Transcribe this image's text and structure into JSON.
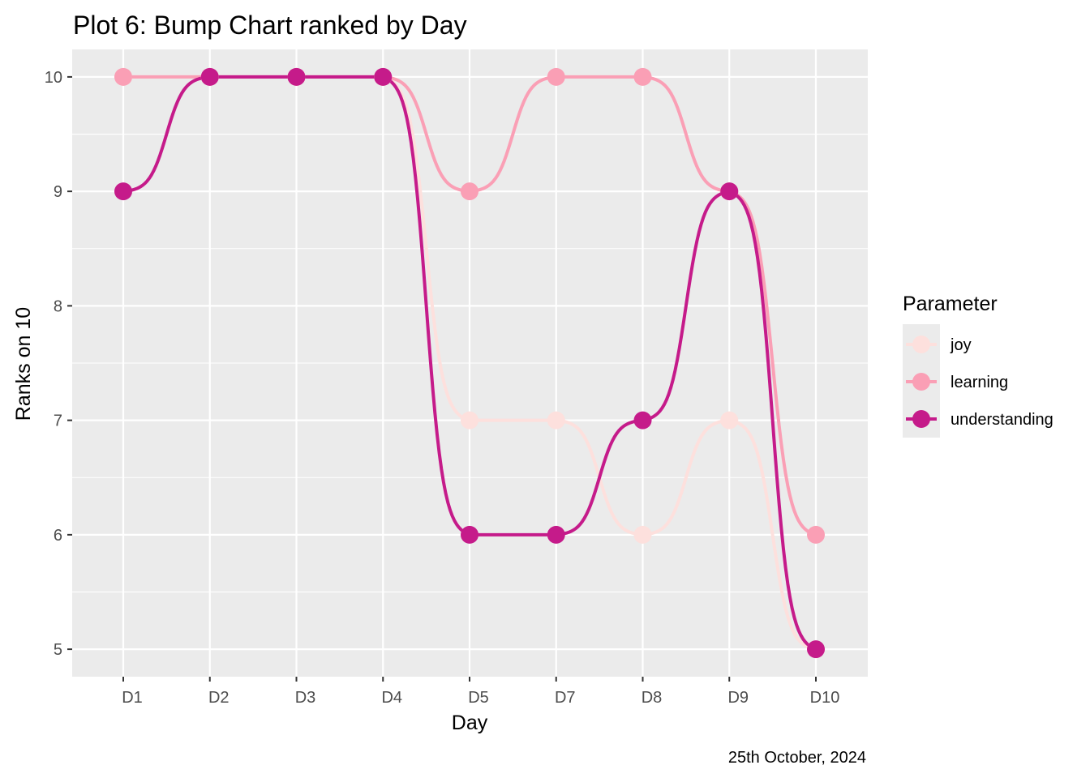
{
  "chart_data": {
    "type": "line",
    "title": "Plot 6: Bump Chart ranked by Day",
    "xlabel": "Day",
    "ylabel": "Ranks on 10",
    "caption": "25th October, 2024",
    "categories": [
      "D1",
      "D2",
      "D3",
      "D4",
      "D5",
      "D7",
      "D8",
      "D9",
      "D10"
    ],
    "yticks": [
      "5",
      "6",
      "7",
      "8",
      "9",
      "10"
    ],
    "ylim": [
      4.76,
      10.24
    ],
    "grid": true,
    "legend": {
      "title": "Parameter",
      "placement": "right"
    },
    "series": [
      {
        "name": "joy",
        "color": "#FDE0DD",
        "values": [
          10,
          10,
          10,
          10,
          7,
          7,
          6,
          7,
          5
        ]
      },
      {
        "name": "learning",
        "color": "#FA9FB5",
        "values": [
          10,
          10,
          10,
          10,
          9,
          10,
          10,
          9,
          6
        ]
      },
      {
        "name": "understanding",
        "color": "#C51B8A",
        "values": [
          9,
          10,
          10,
          10,
          6,
          6,
          7,
          9,
          5
        ]
      }
    ],
    "colors": {
      "panel": "#EBEBEB",
      "grid": "#FFFFFF",
      "tick_text": "#4D4D4D"
    }
  }
}
